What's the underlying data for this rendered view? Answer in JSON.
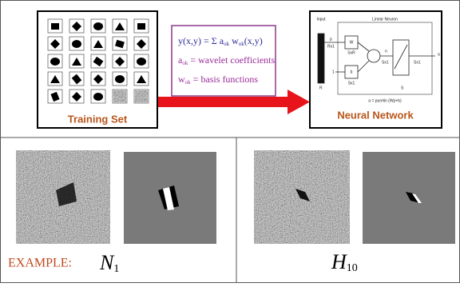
{
  "training_set": {
    "label": "Training Set"
  },
  "equations": {
    "lines": [
      [
        "y(x,y) = Σ a",
        "ok",
        " w",
        "ok",
        "(x,y)"
      ],
      [
        "a",
        "ok",
        " = wavelet coefficients"
      ],
      [
        "w",
        "ok",
        " = basis functions"
      ]
    ]
  },
  "neural_network": {
    "label": "Neural Network",
    "diagram": {
      "input": "Input",
      "layer": "Linear Neuron",
      "p": "p",
      "p_dim": "Rx1",
      "w": "W",
      "w_dim": "SxR",
      "b": "b",
      "b_dim": "Sx1",
      "one": "1",
      "r": "R",
      "n": "n",
      "n_dim": "Sx1",
      "a": "a",
      "a_dim": "Sx1",
      "s": "S",
      "formula": "a = purelin (Wp+b)"
    }
  },
  "examples": {
    "label": "EXAMPLE:",
    "first": {
      "letter": "N",
      "sub": "1"
    },
    "second": {
      "letter": "H",
      "sub": "10"
    }
  }
}
